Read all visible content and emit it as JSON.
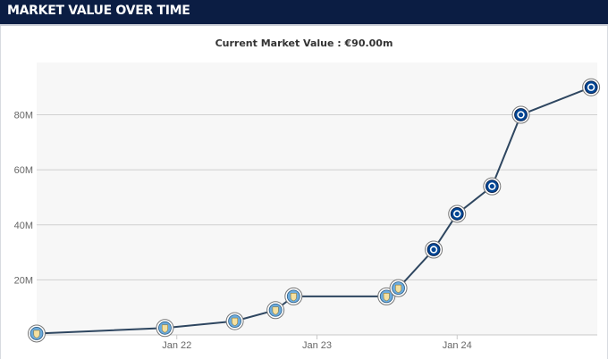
{
  "header": {
    "title": "MARKET VALUE OVER TIME"
  },
  "subtitle": "Current Market Value : €90.00m",
  "colors": {
    "header_bg": "#0b1d43",
    "line": "#2e4660",
    "plot_bg": "#f7f7f7",
    "grid": "#d0d0d0",
    "city_badge": "#6cabdd",
    "chelsea_badge": "#034694"
  },
  "icons": {
    "city": "manchester-city-crest-icon",
    "chelsea": "chelsea-crest-icon"
  },
  "chart_data": {
    "type": "line",
    "title": "Current Market Value : €90.00m",
    "xlabel": "",
    "ylabel": "",
    "x_tick_labels": [
      "Jan 22",
      "Jan 23",
      "Jan 24"
    ],
    "x_ticks": [
      "2022-01-01",
      "2023-01-01",
      "2024-01-01"
    ],
    "xlim": [
      "2021-01-01",
      "2024-12-31"
    ],
    "y_tick_labels": [
      "20M",
      "40M",
      "60M",
      "80M"
    ],
    "y_ticks": [
      20,
      40,
      60,
      80
    ],
    "ylim": [
      0,
      99
    ],
    "grid": true,
    "series": [
      {
        "points": [
          {
            "date": "2021-01-01",
            "value": 0.5,
            "club": "city"
          },
          {
            "date": "2021-12-01",
            "value": 2.5,
            "club": "city"
          },
          {
            "date": "2022-06-01",
            "value": 5,
            "club": "city"
          },
          {
            "date": "2022-09-15",
            "value": 9,
            "club": "city"
          },
          {
            "date": "2022-11-01",
            "value": 14,
            "club": "city"
          },
          {
            "date": "2023-07-01",
            "value": 14,
            "club": "city"
          },
          {
            "date": "2023-08-01",
            "value": 17,
            "club": "city"
          },
          {
            "date": "2023-11-01",
            "value": 31,
            "club": "chelsea"
          },
          {
            "date": "2024-01-01",
            "value": 44,
            "club": "chelsea"
          },
          {
            "date": "2024-04-01",
            "value": 54,
            "club": "chelsea"
          },
          {
            "date": "2024-06-15",
            "value": 80,
            "club": "chelsea"
          },
          {
            "date": "2024-12-15",
            "value": 90,
            "club": "chelsea"
          }
        ]
      }
    ]
  }
}
